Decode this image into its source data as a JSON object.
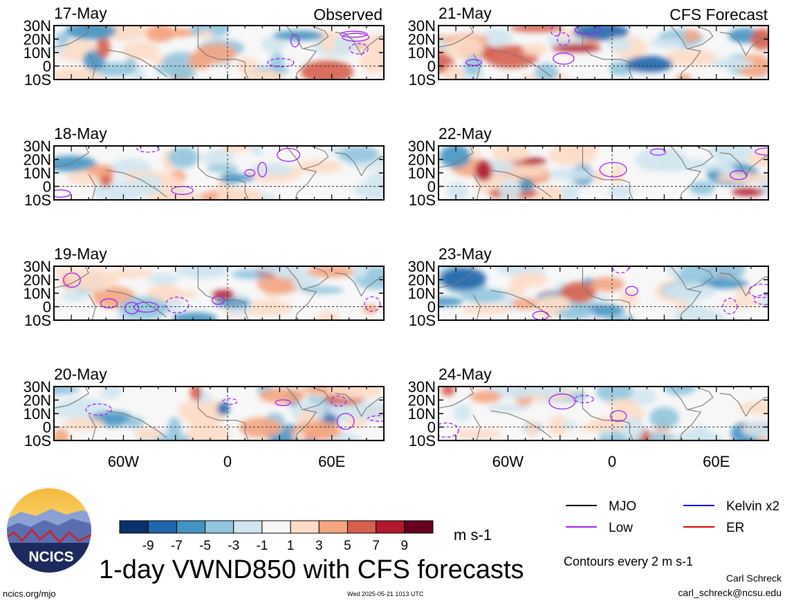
{
  "title": "1-day VWND850 with CFS forecasts",
  "observed_label": "Observed",
  "forecast_label": "CFS Forecast",
  "observed_panels": [
    "17-May",
    "18-May",
    "19-May",
    "20-May"
  ],
  "forecast_panels": [
    "21-May",
    "22-May",
    "23-May",
    "24-May"
  ],
  "lat_labels": [
    "30N",
    "20N",
    "10N",
    "0",
    "10S"
  ],
  "lon_labels": [
    "60W",
    "0",
    "60E"
  ],
  "colorbar": {
    "ticks": [
      "-9",
      "-7",
      "-5",
      "-3",
      "-1",
      "1",
      "3",
      "5",
      "7",
      "9"
    ],
    "units": "m s-1",
    "colors": [
      "#08306b",
      "#2166ac",
      "#4393c3",
      "#92c5de",
      "#d1e5f0",
      "#f7f7f7",
      "#fddbc7",
      "#f4a582",
      "#d6604d",
      "#b2182b",
      "#67001f"
    ]
  },
  "legend": {
    "items": [
      {
        "label": "MJO",
        "color": "#000000"
      },
      {
        "label": "Kelvin x2",
        "color": "#0000ff"
      },
      {
        "label": "Low",
        "color": "#a020f0"
      },
      {
        "label": "ER",
        "color": "#dd0000"
      }
    ],
    "contour_note": "Contours every 2 m s-1"
  },
  "logo_text": "NCICS",
  "footer": {
    "url": "ncics.org/mjo",
    "timestamp": "Wed 2025-05-21 1013 UTC",
    "author": "Carl Schreck",
    "email": "carl_schreck@ncsu.edu"
  }
}
